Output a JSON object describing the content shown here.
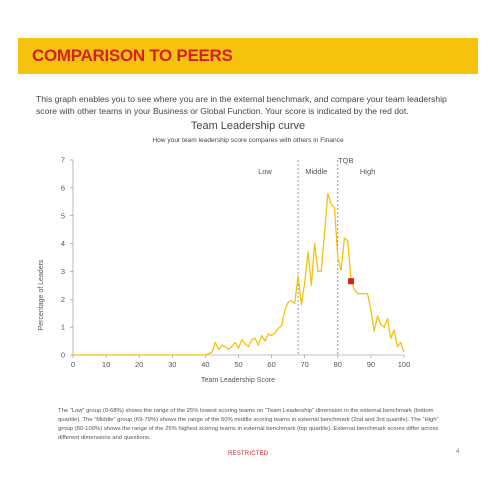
{
  "header": {
    "title": "COMPARISON TO PEERS",
    "banner_color": "#f5c20e",
    "title_color": "#d62027"
  },
  "intro": {
    "text": "This graph enables you to see where you are in the external benchmark, and compare your team leadership score with other teams in your Business or Global Function. Your score is indicated by the red dot."
  },
  "chart_data": {
    "type": "line",
    "title": "Team Leadership curve",
    "subtitle": "How your team leadership score compares with others in Finance",
    "xlabel": "Team Leadership Score",
    "ylabel": "Percentage of Leaders",
    "xlim": [
      0,
      100
    ],
    "ylim": [
      0,
      7
    ],
    "xticks": [
      0,
      10,
      20,
      30,
      40,
      50,
      60,
      70,
      80,
      90,
      100
    ],
    "yticks": [
      0,
      1,
      2,
      3,
      4,
      5,
      6,
      7
    ],
    "grid": false,
    "line_color": "#f5c20e",
    "zones": [
      {
        "label": "Low",
        "x": 58
      },
      {
        "label": "Middle",
        "x": 73.5
      },
      {
        "label": "High",
        "x": 89
      }
    ],
    "dividers": [
      68,
      80
    ],
    "top_marker": {
      "label": "TQB",
      "x": 80
    },
    "your_score": {
      "x": 84,
      "y": 2.65,
      "color": "#d62027"
    },
    "series": [
      {
        "x": [
          0,
          40,
          41,
          42,
          43,
          44,
          45,
          46,
          47,
          48,
          49,
          50,
          51,
          52,
          53,
          54,
          55,
          56,
          57,
          58,
          59,
          60,
          61,
          62,
          63,
          64,
          65,
          66,
          67,
          68,
          69,
          70,
          71,
          72,
          73,
          74,
          75,
          76,
          77,
          78,
          79,
          80,
          81,
          82,
          83,
          84,
          85,
          86,
          87,
          88,
          89,
          90,
          91,
          92,
          93,
          94,
          95,
          96,
          97,
          98,
          99,
          100
        ],
        "y": [
          0,
          0,
          0.05,
          0.1,
          0.45,
          0.2,
          0.35,
          0.3,
          0.2,
          0.3,
          0.45,
          0.25,
          0.55,
          0.4,
          0.3,
          0.55,
          0.6,
          0.35,
          0.7,
          0.5,
          0.75,
          0.7,
          0.8,
          0.95,
          1.05,
          1.6,
          1.9,
          1.95,
          1.85,
          2.85,
          1.8,
          2.6,
          3.7,
          2.5,
          4.0,
          3.0,
          3.0,
          4.4,
          5.8,
          5.4,
          5.3,
          3.5,
          3.05,
          4.2,
          4.1,
          2.65,
          2.35,
          2.2,
          2.2,
          2.2,
          2.2,
          1.6,
          0.85,
          1.4,
          1.1,
          1.0,
          1.3,
          0.6,
          0.9,
          0.3,
          0.45,
          0.1
        ]
      }
    ]
  },
  "footnote": {
    "text": "The “Low” group (0-68%) shows the range of the 25% lowest scoring teams on “Team Leadership” dimension in the external benchmark (bottom quartile). The “Middle” group (69-79%) shows the range of the 50% middle scoring teams in external benchmark (2nd and 3rd quartile). The “High” group (80-100%) shows the range of the 25% highest scoring teams in external benchmark (top quartile). External benchmark scores differ across different dimensions and questions."
  },
  "footer": {
    "restricted": "RESTRICTED",
    "page_number": "4"
  }
}
